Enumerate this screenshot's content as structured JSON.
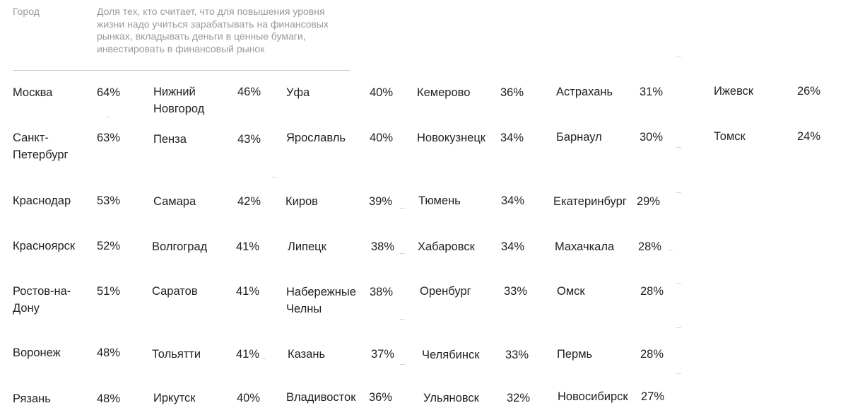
{
  "header": {
    "city_label": "Город",
    "share_label": "Доля тех, кто считает, что для повышения уровня жизни надо учиться зарабатывать на финансовых рынках, вкладывать деньги в ценные бумаги, инвестировать в финансовый рынок"
  },
  "columns": [
    {
      "rows": [
        {
          "city": "Москва",
          "value": "64%"
        },
        {
          "city": "Санкт-Петербург",
          "value": "63%"
        },
        {
          "city": "Краснодар",
          "value": "53%"
        },
        {
          "city": "Красноярск",
          "value": "52%"
        },
        {
          "city": "Ростов-на-Дону",
          "value": "51%"
        },
        {
          "city": "Воронеж",
          "value": "48%"
        },
        {
          "city": "Рязань",
          "value": "48%"
        }
      ]
    },
    {
      "rows": [
        {
          "city": "Нижний Новгород",
          "value": "46%"
        },
        {
          "city": "Пенза",
          "value": "43%"
        },
        {
          "city": "Самара",
          "value": "42%"
        },
        {
          "city": "Волгоград",
          "value": "41%"
        },
        {
          "city": "Саратов",
          "value": "41%"
        },
        {
          "city": "Тольятти",
          "value": "41%"
        },
        {
          "city": "Иркутск",
          "value": "40%"
        }
      ]
    },
    {
      "rows": [
        {
          "city": "Уфа",
          "value": "40%"
        },
        {
          "city": "Ярославль",
          "value": "40%"
        },
        {
          "city": "Киров",
          "value": "39%"
        },
        {
          "city": "Липецк",
          "value": "38%"
        },
        {
          "city": "Набережные Челны",
          "value": "38%"
        },
        {
          "city": "Казань",
          "value": "37%"
        },
        {
          "city": "Владивосток",
          "value": "36%"
        }
      ]
    },
    {
      "rows": [
        {
          "city": "Кемерово",
          "value": "36%"
        },
        {
          "city": "Новокузнецк",
          "value": "34%"
        },
        {
          "city": "Тюмень",
          "value": "34%"
        },
        {
          "city": "Хабаровск",
          "value": "34%"
        },
        {
          "city": "Оренбург",
          "value": "33%"
        },
        {
          "city": "Челябинск",
          "value": "33%"
        },
        {
          "city": "Ульяновск",
          "value": "32%"
        }
      ]
    },
    {
      "rows": [
        {
          "city": "Астрахань",
          "value": "31%"
        },
        {
          "city": "Барнаул",
          "value": "30%"
        },
        {
          "city": "Екатеринбург",
          "value": "29%"
        },
        {
          "city": "Махачкала",
          "value": "28%"
        },
        {
          "city": "Омск",
          "value": "28%"
        },
        {
          "city": "Пермь",
          "value": "28%"
        },
        {
          "city": "Новосибирск",
          "value": "27%"
        }
      ]
    },
    {
      "rows": [
        {
          "city": "Ижевск",
          "value": "26%"
        },
        {
          "city": "Томск",
          "value": "24%"
        }
      ]
    }
  ]
}
